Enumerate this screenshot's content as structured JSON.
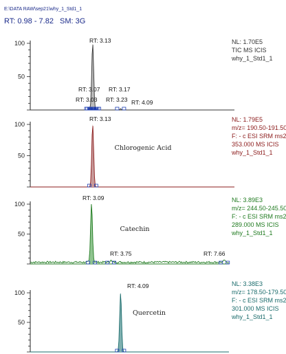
{
  "file_path": "E:\\DATA RAW\\sep21\\why_1_Std1_1",
  "rt_range_label": "RT: 0.98 - 7.82",
  "sm_label": "SM: 3G",
  "colors": {
    "header": "#1a2a8a",
    "panel1": "#333333",
    "panel2": "#8b1a1a",
    "panel3": "#1f7a1f",
    "panel4": "#1a6b6b",
    "marker": "#1a3ab0"
  },
  "chart_data": [
    {
      "type": "line",
      "panel": "tic",
      "color_key": "panel1",
      "fill": "#bbbbbb",
      "ylim": [
        0,
        100
      ],
      "yticks": [
        "100",
        "50"
      ],
      "xlim": [
        0.98,
        7.82
      ],
      "peaks": [
        {
          "rt": 3.13,
          "height": 100,
          "label": "RT: 3.13"
        },
        {
          "rt": 3.07,
          "height": 1,
          "label": "RT: 3.07"
        },
        {
          "rt": 3.17,
          "height": 1,
          "label": "RT: 3.17"
        },
        {
          "rt": 3.03,
          "height": 1,
          "label": "RT: 3.03"
        },
        {
          "rt": 3.23,
          "height": 1,
          "label": "RT: 3.23"
        },
        {
          "rt": 4.09,
          "height": 2,
          "label": "RT: 4.09"
        }
      ],
      "compound_label": "",
      "info": {
        "nl": "NL: 1.70E5",
        "line2": "TIC  MS  ICIS",
        "line3": "why_1_Std1_1",
        "line4": "",
        "line5": ""
      }
    },
    {
      "type": "line",
      "panel": "chlorogenic",
      "color_key": "panel2",
      "fill": "#c89a9a",
      "ylim": [
        0,
        100
      ],
      "yticks": [
        "100",
        "50"
      ],
      "xlim": [
        0.98,
        7.82
      ],
      "peaks": [
        {
          "rt": 3.13,
          "height": 100,
          "label": "RT: 3.13"
        }
      ],
      "compound_label": "Chlorogenic Acid",
      "info": {
        "nl": "NL: 1.79E5",
        "line2": "m/z= 190.50-191.50",
        "line3": "F: - c ESI SRM ms2",
        "line4": "353.000  MS  ICIS",
        "line5": "why_1_Std1_1"
      }
    },
    {
      "type": "line",
      "panel": "catechin",
      "color_key": "panel3",
      "fill": "#8fc48f",
      "ylim": [
        0,
        100
      ],
      "yticks": [
        "100",
        "50"
      ],
      "xlim": [
        0.98,
        7.82
      ],
      "peaks": [
        {
          "rt": 3.09,
          "height": 100,
          "label": "RT: 3.09"
        },
        {
          "rt": 3.75,
          "height": 4,
          "label": "RT: 3.75"
        },
        {
          "rt": 7.66,
          "height": 4,
          "label": "RT: 7.66"
        }
      ],
      "compound_label": "Catechin",
      "info": {
        "nl": "NL: 3.89E3",
        "line2": "m/z= 244.50-245.50",
        "line3": "F: - c ESI SRM ms2",
        "line4": "289.000  MS  ICIS",
        "line5": "why_1_Std1_1"
      }
    },
    {
      "type": "line",
      "panel": "quercetin",
      "color_key": "panel4",
      "fill": "#7fb0b0",
      "ylim": [
        0,
        100
      ],
      "yticks": [
        "100",
        "50"
      ],
      "xlim": [
        0.98,
        7.82
      ],
      "peaks": [
        {
          "rt": 4.09,
          "height": 100,
          "label": "RT: 4.09"
        }
      ],
      "compound_label": "Quercetin",
      "info": {
        "nl": "NL: 3.38E3",
        "line2": "m/z= 178.50-179.50",
        "line3": "F: - c ESI SRM ms2",
        "line4": "301.000  MS  ICIS",
        "line5": "why_1_Std1_1"
      }
    }
  ]
}
